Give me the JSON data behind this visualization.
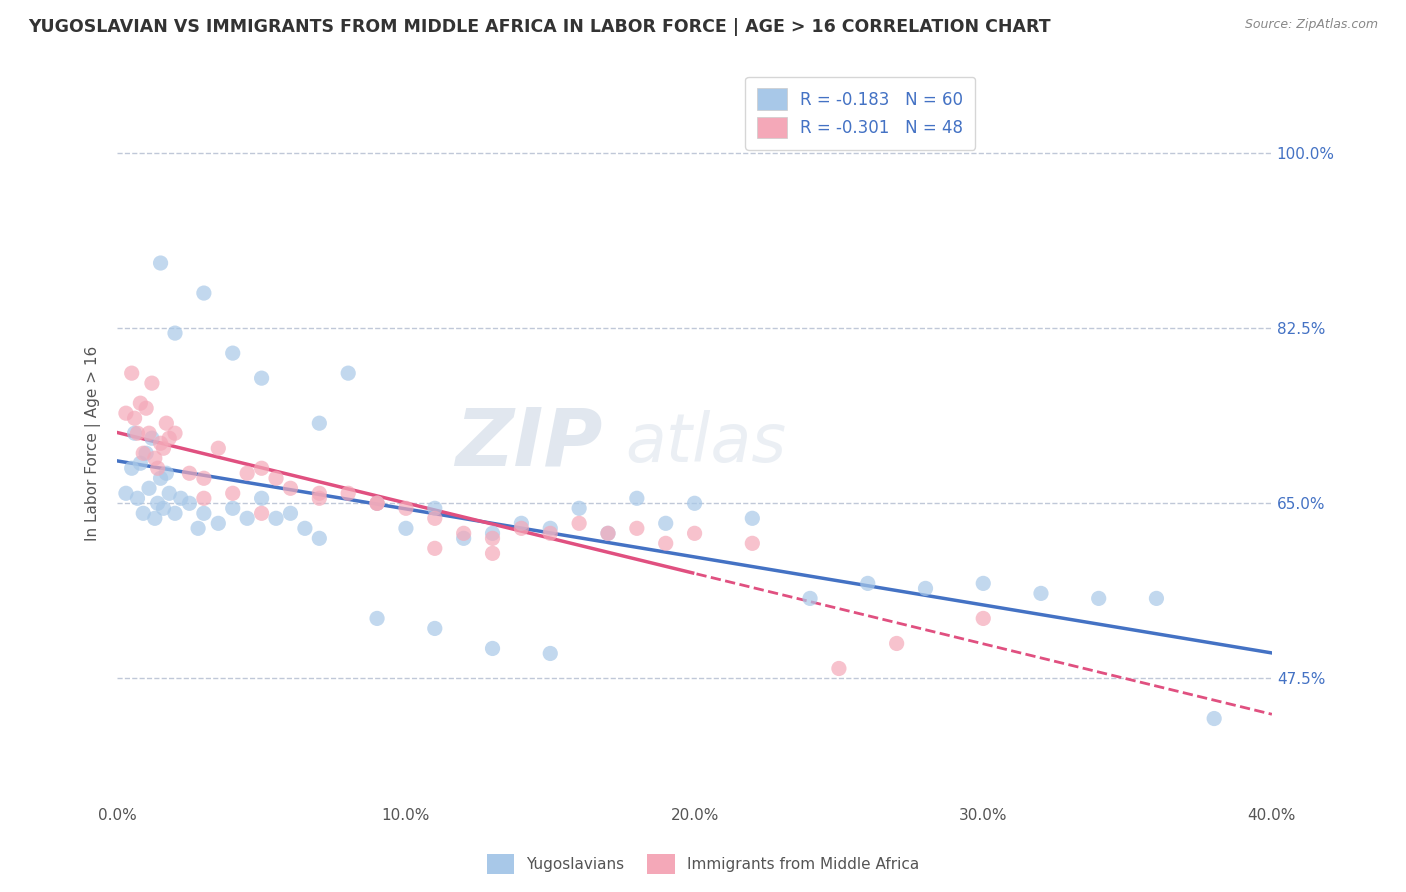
{
  "title": "YUGOSLAVIAN VS IMMIGRANTS FROM MIDDLE AFRICA IN LABOR FORCE | AGE > 16 CORRELATION CHART",
  "source_text": "Source: ZipAtlas.com",
  "ylabel": "In Labor Force | Age > 16",
  "xlim": [
    0.0,
    40.0
  ],
  "ylim": [
    35.0,
    107.0
  ],
  "yticks": [
    47.5,
    65.0,
    82.5,
    100.0
  ],
  "xticks": [
    0.0,
    10.0,
    20.0,
    30.0,
    40.0
  ],
  "blue_color": "#a8c8e8",
  "pink_color": "#f4a8b8",
  "blue_line_color": "#4472c4",
  "pink_line_color": "#e05080",
  "blue_R": -0.183,
  "blue_N": 60,
  "pink_R": -0.301,
  "pink_N": 48,
  "yugoslavian_x": [
    0.3,
    0.5,
    0.6,
    0.7,
    0.8,
    0.9,
    1.0,
    1.1,
    1.2,
    1.3,
    1.4,
    1.5,
    1.6,
    1.7,
    1.8,
    2.0,
    2.2,
    2.5,
    2.8,
    3.0,
    3.5,
    4.0,
    4.5,
    5.0,
    5.5,
    6.0,
    6.5,
    7.0,
    8.0,
    9.0,
    10.0,
    11.0,
    12.0,
    13.0,
    14.0,
    15.0,
    16.0,
    17.0,
    18.0,
    19.0,
    20.0,
    22.0,
    24.0,
    26.0,
    28.0,
    30.0,
    32.0,
    34.0,
    36.0,
    38.0,
    1.5,
    2.0,
    3.0,
    4.0,
    5.0,
    7.0,
    9.0,
    11.0,
    13.0,
    15.0
  ],
  "yugoslavian_y": [
    66.0,
    68.5,
    72.0,
    65.5,
    69.0,
    64.0,
    70.0,
    66.5,
    71.5,
    63.5,
    65.0,
    67.5,
    64.5,
    68.0,
    66.0,
    64.0,
    65.5,
    65.0,
    62.5,
    64.0,
    63.0,
    64.5,
    63.5,
    65.5,
    63.5,
    64.0,
    62.5,
    61.5,
    78.0,
    65.0,
    62.5,
    64.5,
    61.5,
    62.0,
    63.0,
    62.5,
    64.5,
    62.0,
    65.5,
    63.0,
    65.0,
    63.5,
    55.5,
    57.0,
    56.5,
    57.0,
    56.0,
    55.5,
    55.5,
    43.5,
    89.0,
    82.0,
    86.0,
    80.0,
    77.5,
    73.0,
    53.5,
    52.5,
    50.5,
    50.0
  ],
  "immigrant_x": [
    0.3,
    0.5,
    0.6,
    0.7,
    0.8,
    0.9,
    1.0,
    1.1,
    1.2,
    1.3,
    1.4,
    1.5,
    1.6,
    1.7,
    1.8,
    2.0,
    2.5,
    3.0,
    3.5,
    4.0,
    4.5,
    5.0,
    5.5,
    6.0,
    7.0,
    8.0,
    9.0,
    10.0,
    11.0,
    12.0,
    13.0,
    14.0,
    15.0,
    16.0,
    17.0,
    18.0,
    19.0,
    20.0,
    22.0,
    3.0,
    5.0,
    7.0,
    9.0,
    11.0,
    13.0,
    25.0,
    27.0,
    30.0
  ],
  "immigrant_y": [
    74.0,
    78.0,
    73.5,
    72.0,
    75.0,
    70.0,
    74.5,
    72.0,
    77.0,
    69.5,
    68.5,
    71.0,
    70.5,
    73.0,
    71.5,
    72.0,
    68.0,
    67.5,
    70.5,
    66.0,
    68.0,
    68.5,
    67.5,
    66.5,
    66.0,
    66.0,
    65.0,
    64.5,
    63.5,
    62.0,
    61.5,
    62.5,
    62.0,
    63.0,
    62.0,
    62.5,
    61.0,
    62.0,
    61.0,
    65.5,
    64.0,
    65.5,
    65.0,
    60.5,
    60.0,
    48.5,
    51.0,
    53.5
  ],
  "pink_dash_start_x": 20.0,
  "grid_color": "#c0c8d8",
  "watermark_zip_color": "#d0dce8",
  "watermark_atlas_color": "#c8d4e4"
}
